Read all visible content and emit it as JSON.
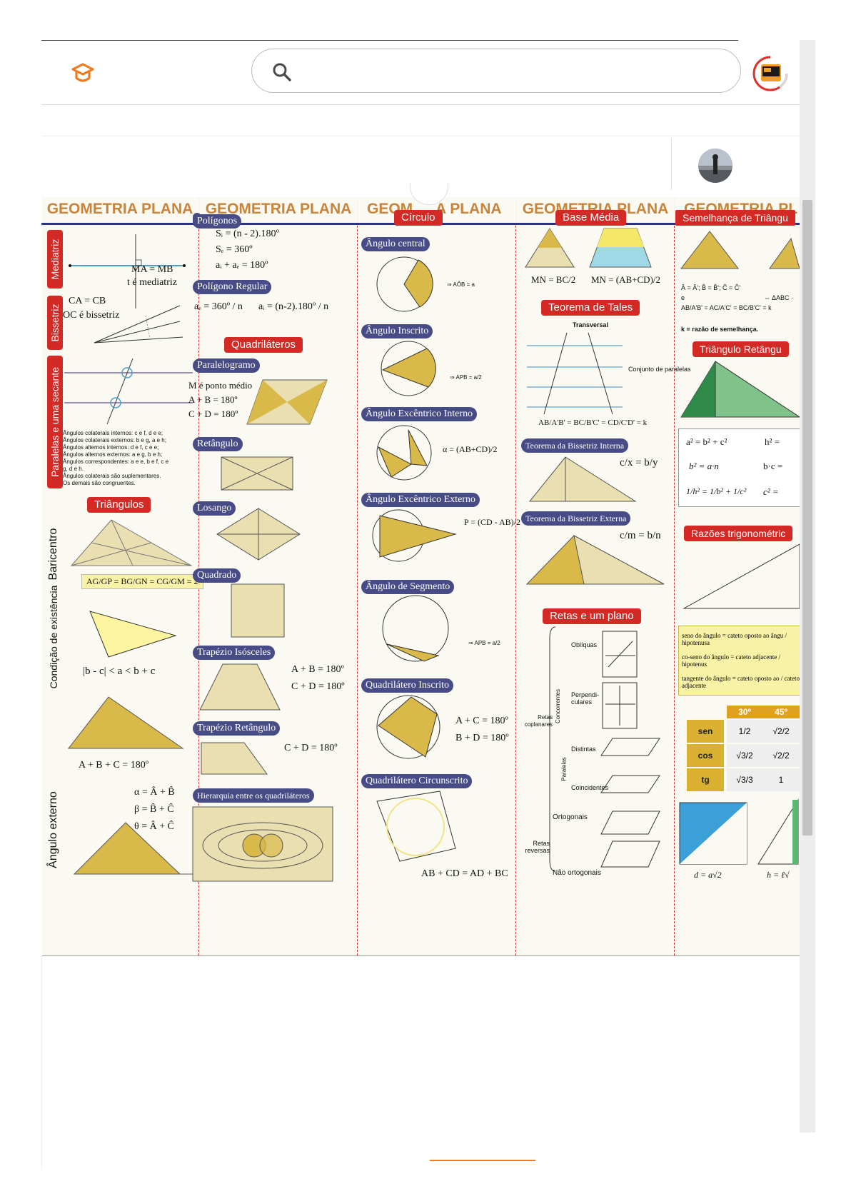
{
  "colors": {
    "brand_orange": "#f07a1c",
    "title_orange": "#c8843a",
    "section_red": "#d42a26",
    "pill_navy": "#474b86"
  },
  "search": {
    "placeholder": "",
    "value": ""
  },
  "icons": {
    "logo": "graduation-cap-icon",
    "search": "search-icon",
    "profile": "avatar-icon"
  },
  "doc": {
    "col_titles": [
      "GEOMETRIA PLANA",
      "GEOMETRIA PLANA",
      "GEOM",
      "A PLANA",
      "GEOMETRIA PLANA",
      "GEOMETRIA PL"
    ],
    "col1": {
      "mediatriz": "Mediatriz",
      "ma_mb": "MA = MB",
      "t_mediatriz": "t é mediatriz",
      "bissetriz": "Bissetriz",
      "ca_cb": "CA = CB",
      "oc_bissetriz": "OC é bissetriz",
      "paralelas": "Paralelas e uma secante",
      "angulos_lines": [
        "Ângulos colaterais internos: c e f, d e e;",
        "Ângulos colaterais externos: b e g, a e h;",
        "Ângulos alternos internos: d e f, c e e;",
        "Ângulos alternos externos: a e g, b e h;",
        "Ângulos correspondentes: a e e, b e f, c e",
        "g, d e h.",
        "Ângulos colaterais são suplementares.",
        "Os demais são congruentes."
      ],
      "triangulos": "Triângulos",
      "baricentro": "Baricentro",
      "bari_formula": "AG/GP = BG/GN = CG/GM = 2",
      "condicao": "Condição de existência",
      "cond_formula": "|b - c| < a < b + c",
      "soma_formula": "A + B + C = 180º",
      "angulo_externo": "Ângulo externo",
      "ext_formulas": [
        "α = Â + B̂",
        "β = B̂ + Ĉ",
        "θ = Â + Ĉ"
      ]
    },
    "col2": {
      "poligonos": "Polígonos",
      "poly_formulas": [
        "Sᵢ = (n - 2).180º",
        "Sₑ = 360º",
        "aᵢ + aₑ = 180º"
      ],
      "poligono_regular": "Polígono Regular",
      "reg_formulas": [
        "aₑ = 360º / n",
        "aᵢ = (n-2).180º / n"
      ],
      "quadrilateros": "Quadriláteros",
      "paralelogramo": "Paralelogramo",
      "para_formulas": [
        "M é ponto médio",
        "A + B = 180º",
        "C + D = 180º"
      ],
      "retangulo": "Retângulo",
      "losango": "Losango",
      "quadrado": "Quadrado",
      "trap_isosceles": "Trapézio Isósceles",
      "trap_iso_formulas": [
        "A + B = 180º",
        "C + D = 180º"
      ],
      "trap_retangulo": "Trapézio Retângulo",
      "trap_ret_formula": "C + D = 180º",
      "hierarquia": "Hierarquia entre os quadriláteros"
    },
    "col3": {
      "circulo": "Círculo",
      "angulo_central": "Ângulo central",
      "central_formula": "⇒ AÔB = a",
      "angulo_inscrito": "Ângulo Inscrito",
      "inscrito_formula": "⇒ APB = a/2",
      "exc_interno": "Ângulo Excêntrico Interno",
      "exc_int_formula": "α = (AB+CD)/2",
      "exc_externo": "Ângulo Excêntrico Externo",
      "exc_ext_formula": "P = (CD - AB)/2",
      "angulo_segmento": "Ângulo de Segmento",
      "segmento_formula": "⇒ APB = a/2",
      "quad_inscrito": "Quadrilátero Inscrito",
      "quad_insc_formulas": [
        "A + C = 180º",
        "B + D = 180º"
      ],
      "quad_circunscrito": "Quadrilátero Circunscrito",
      "quad_circ_formula": "AB + CD = AD + BC"
    },
    "col4": {
      "base_media": "Base Média",
      "bm_formulas": [
        "MN = BC/2",
        "MN = (AB+CD)/2"
      ],
      "tales": "Teorema de Tales",
      "transversal": "Transversal",
      "conjunto": "Conjunto de paralelas",
      "tales_formula": "AB/A'B' = BC/B'C' = CD/C'D' = k",
      "bis_interna": "Teorema da Bissetriz Interna",
      "bis_int_formula": "c/x = b/y",
      "bis_externa": "Teorema da Bissetriz Externa",
      "bis_ext_formula": "c/m = b/n",
      "retas_plano": "Retas e um plano",
      "labels": [
        "Oblíquas",
        "Perpendi- culares",
        "Concorrentes",
        "Retas coplanares",
        "Distintas",
        "Coincidentes",
        "Paralelas",
        "Ortogonais",
        "Retas reversas",
        "Não ortogonais"
      ]
    },
    "col5": {
      "semelhanca": "Semelhança de Triângu",
      "sem_lines": [
        "Â = Â'; B̂ = B̂'; Ĉ = Ĉ'",
        "e",
        "AB/A'B' = AC/A'C' = BC/B'C' = k",
        "⇔ ΔABC ·",
        "k = razão de semelhança."
      ],
      "tri_retangulo": "Triângulo Retângu",
      "rel_formulas": [
        "a² = b² + c²",
        "h² =",
        "b² = a·n",
        "b·c =",
        "1/h² = 1/b² + 1/c²",
        "c² ="
      ],
      "razoes": "Razões trigonométric",
      "seno": "seno do ângulo = cateto oposto ao ângu / hipotenusa",
      "cosseno": "co-seno do ângulo = cateto adjacente / hipotenus",
      "tangente": "tangente do ângulo = cateto oposto ao / cateto adjacente",
      "table_head": [
        "30º",
        "45º"
      ],
      "table_rows": [
        [
          "sen",
          "1/2",
          "√2/2"
        ],
        [
          "cos",
          "√3/2",
          "√2/2"
        ],
        [
          "tg",
          "√3/3",
          "1"
        ]
      ],
      "diag_formula": "d = a√2",
      "alt_formula": "h = ℓ√"
    }
  }
}
